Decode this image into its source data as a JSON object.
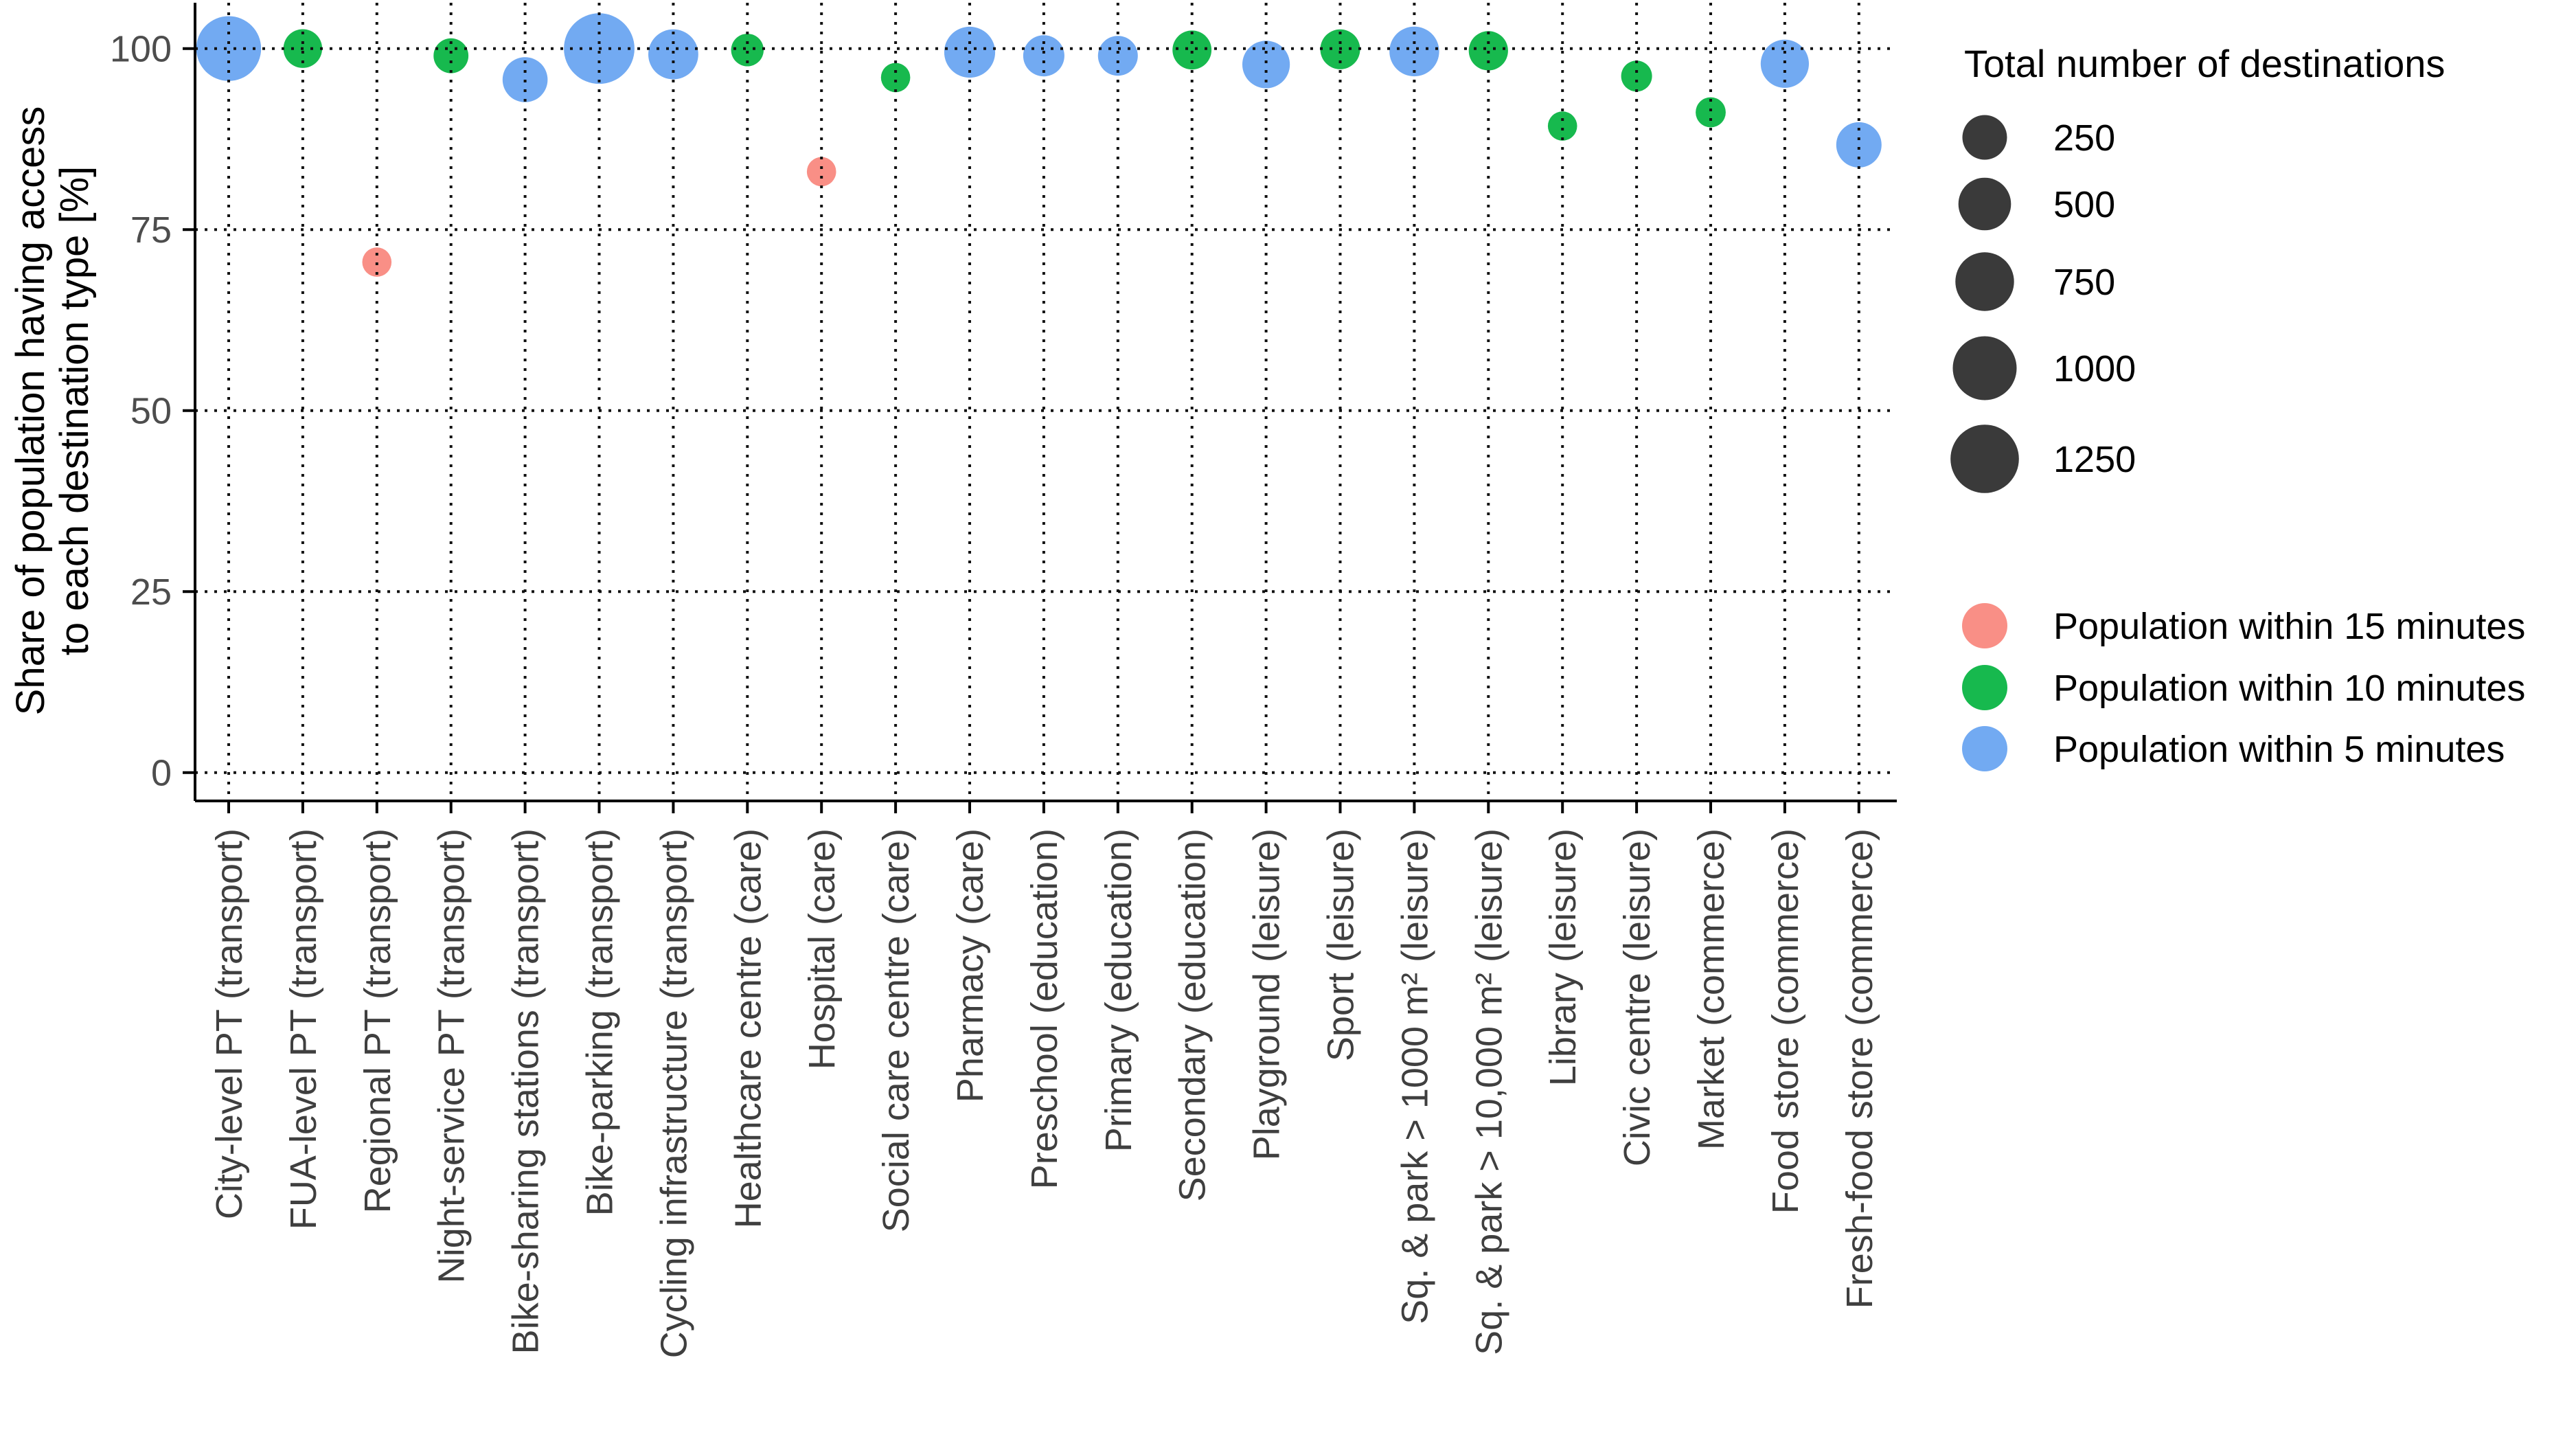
{
  "figure": {
    "background": "#ffffff"
  },
  "colors": {
    "within_5": "#72AAF2",
    "within_10": "#17B94E",
    "within_15": "#F98F86",
    "legend_circle": "#3A3A3A",
    "axis_tick_text": "#4D4D4D",
    "category_text": "#3F3F3F",
    "grid": "#111111",
    "axis_line": "#000000",
    "legend_text": "#000000"
  },
  "y_axis": {
    "title_line1": "Share of population having access",
    "title_line2": "to each destination type [%]",
    "tick_labels": [
      "100",
      "75",
      "50",
      "25",
      "0"
    ],
    "tick_values": [
      100,
      75,
      50,
      25,
      0
    ]
  },
  "size_legend": {
    "title": "Total number of destinations",
    "entries": [
      {
        "label": "250",
        "value": 250
      },
      {
        "label": "500",
        "value": 500
      },
      {
        "label": "750",
        "value": 750
      },
      {
        "label": "1000",
        "value": 1000
      },
      {
        "label": "1250",
        "value": 1250
      }
    ]
  },
  "color_legend": {
    "entries": [
      {
        "label": "Population within 15 minutes",
        "minutes": 15
      },
      {
        "label": "Population within 10 minutes",
        "minutes": 10
      },
      {
        "label": "Population within 5 minutes",
        "minutes": 5
      }
    ]
  },
  "chart_data": {
    "type": "scatter",
    "subtype": "bubble",
    "title": "",
    "xlabel": "",
    "ylabel": "Share of population having access to each destination type [%]",
    "ylim": [
      0,
      100
    ],
    "y_gridlines": [
      100,
      75,
      50,
      25,
      0
    ],
    "grid": "dotted",
    "legend_position": "right",
    "size_encoding": "Total number of destinations",
    "color_encoding": "Population within 5 / 10 / 15 minutes",
    "categories": [
      "City-level PT (transport)",
      "FUA-level PT (transport)",
      "Regional PT (transport)",
      "Night-service PT (transport)",
      "Bike-sharing stations (transport)",
      "Bike-parking (transport)",
      "Cycling infrastructure (transport)",
      "Healthcare centre (care)",
      "Hospital (care)",
      "Social care centre (care)",
      "Pharmacy (care)",
      "Preschool (education)",
      "Primary (education)",
      "Secondary (education)",
      "Playground (leisure)",
      "Sport (leisure)",
      "Sq. & park > 1000 m² (leisure)",
      "Sq. & park > 10,000 m² (leisure)",
      "Library (leisure)",
      "Civic centre (leisure)",
      "Market (commerce)",
      "Food store (commerce)",
      "Fresh-food store (commerce)"
    ],
    "points": [
      {
        "category": "City-level PT (transport)",
        "share_pct": 100,
        "minutes": 5,
        "total_destinations": 1050
      },
      {
        "category": "FUA-level PT (transport)",
        "share_pct": 100,
        "minutes": 10,
        "total_destinations": 120
      },
      {
        "category": "Regional PT (transport)",
        "share_pct": 70.5,
        "minutes": 15,
        "total_destinations": 10
      },
      {
        "category": "Night-service PT (transport)",
        "share_pct": 99,
        "minutes": 10,
        "total_destinations": 60
      },
      {
        "category": "Bike-sharing stations (transport)",
        "share_pct": 95.7,
        "minutes": 5,
        "total_destinations": 260
      },
      {
        "category": "Bike-parking (transport)",
        "share_pct": 100,
        "minutes": 5,
        "total_destinations": 1380
      },
      {
        "category": "Cycling infrastructure (transport)",
        "share_pct": 99.2,
        "minutes": 5,
        "total_destinations": 410
      },
      {
        "category": "Healthcare centre (care)",
        "share_pct": 99.8,
        "minutes": 10,
        "total_destinations": 35
      },
      {
        "category": "Hospital (care)",
        "share_pct": 83,
        "minutes": 15,
        "total_destinations": 10
      },
      {
        "category": "Social care centre (care)",
        "share_pct": 96,
        "minutes": 10,
        "total_destinations": 10
      },
      {
        "category": "Pharmacy (care)",
        "share_pct": 99.5,
        "minutes": 5,
        "total_destinations": 440
      },
      {
        "category": "Preschool (education)",
        "share_pct": 99,
        "minutes": 5,
        "total_destinations": 170
      },
      {
        "category": "Primary (education)",
        "share_pct": 99,
        "minutes": 5,
        "total_destinations": 140
      },
      {
        "category": "Secondary (education)",
        "share_pct": 99.8,
        "minutes": 10,
        "total_destinations": 125
      },
      {
        "category": "Playground (leisure)",
        "share_pct": 97.8,
        "minutes": 5,
        "total_destinations": 330
      },
      {
        "category": "Sport (leisure)",
        "share_pct": 99.9,
        "minutes": 10,
        "total_destinations": 140
      },
      {
        "category": "Sq. & park > 1000 m² (leisure)",
        "share_pct": 99.6,
        "minutes": 5,
        "total_destinations": 400
      },
      {
        "category": "Sq. & park > 10,000 m² (leisure)",
        "share_pct": 99.7,
        "minutes": 10,
        "total_destinations": 130
      },
      {
        "category": "Library (leisure)",
        "share_pct": 89.3,
        "minutes": 10,
        "total_destinations": 10
      },
      {
        "category": "Civic centre (leisure)",
        "share_pct": 96.2,
        "minutes": 10,
        "total_destinations": 20
      },
      {
        "category": "Market (commerce)",
        "share_pct": 91.2,
        "minutes": 10,
        "total_destinations": 15
      },
      {
        "category": "Food store (commerce)",
        "share_pct": 97.9,
        "minutes": 5,
        "total_destinations": 350
      },
      {
        "category": "Fresh-food store (commerce)",
        "share_pct": 86.7,
        "minutes": 5,
        "total_destinations": 270
      }
    ]
  }
}
